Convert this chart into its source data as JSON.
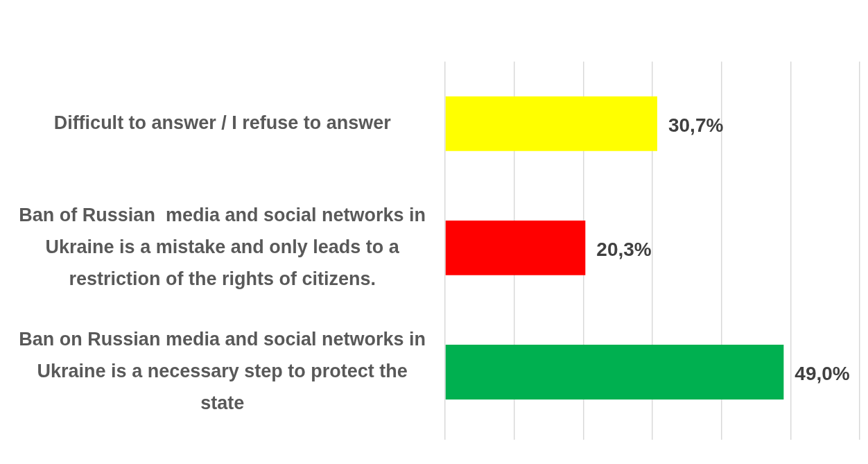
{
  "chart_data": {
    "type": "bar",
    "orientation": "horizontal",
    "categories": [
      "Difficult to answer / I refuse to answer",
      "Ban of Russian  media and social networks in Ukraine is a mistake and only leads to a restriction of the rights of citizens.",
      "Ban on Russian media and social networks in Ukraine is a necessary step to protect the state"
    ],
    "values": [
      30.7,
      20.3,
      49.0
    ],
    "colors": [
      "#ffff00",
      "#ff0000",
      "#00b050"
    ],
    "value_labels": [
      "30,7%",
      "20,3%",
      "49,0%"
    ],
    "xlim": [
      0,
      60
    ],
    "xticks": [
      {
        "value": 0,
        "label": null
      },
      {
        "value": 10,
        "label": null
      },
      {
        "value": 20,
        "label": null
      },
      {
        "value": 30,
        "label": null
      },
      {
        "value": 40,
        "label": null
      },
      {
        "value": 50,
        "label": null
      },
      {
        "value": 60,
        "label": null
      }
    ],
    "grid": "x",
    "tick_labels": "y"
  }
}
